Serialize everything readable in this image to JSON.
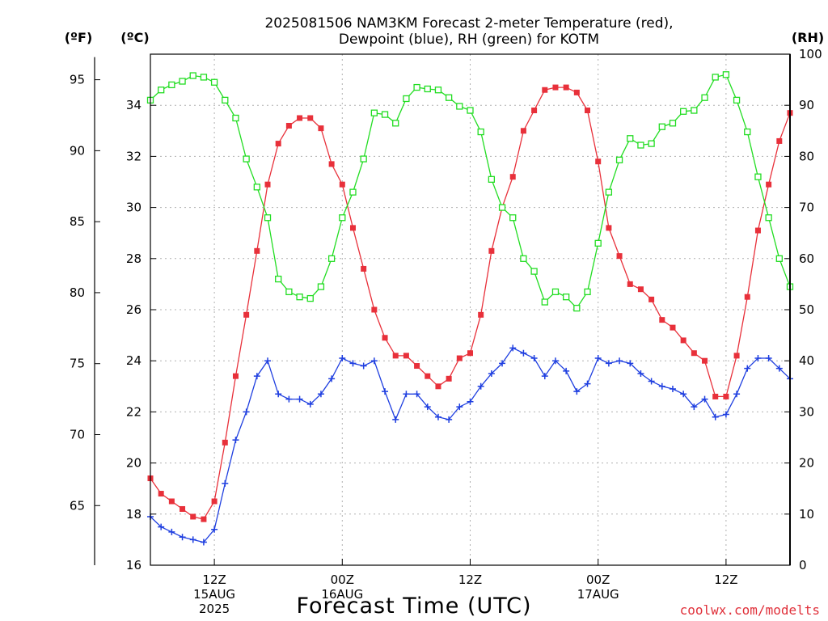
{
  "chart_data": {
    "type": "line",
    "title_line1": "2025081506 NAM3KM Forecast 2-meter Temperature (red),",
    "title_line2": "Dewpoint (blue), RH (green) for KOTM",
    "xlabel": "Forecast Time (UTC)",
    "unit_f": "(ºF)",
    "unit_c": "(ºC)",
    "unit_rh": "(RH)",
    "watermark": "coolwx.com/modelts",
    "x_ticks": [
      {
        "hour": 6,
        "line1": "12Z",
        "line2": "15AUG",
        "line3": "2025"
      },
      {
        "hour": 18,
        "line1": "00Z",
        "line2": "16AUG",
        "line3": ""
      },
      {
        "hour": 30,
        "line1": "12Z",
        "line2": "",
        "line3": ""
      },
      {
        "hour": 42,
        "line1": "00Z",
        "line2": "17AUG",
        "line3": ""
      },
      {
        "hour": 54,
        "line1": "12Z",
        "line2": "",
        "line3": ""
      }
    ],
    "x_range": [
      0,
      60
    ],
    "c_range": [
      16,
      36
    ],
    "c_ticks": [
      16,
      18,
      20,
      22,
      24,
      26,
      28,
      30,
      32,
      34
    ],
    "f_ticks": [
      65,
      70,
      75,
      80,
      85,
      90,
      95
    ],
    "rh_range": [
      0,
      100
    ],
    "rh_ticks": [
      0,
      10,
      20,
      30,
      40,
      50,
      60,
      70,
      80,
      90,
      100
    ],
    "grid": true,
    "hours": [
      0,
      1,
      2,
      3,
      4,
      5,
      6,
      7,
      8,
      9,
      10,
      11,
      12,
      13,
      14,
      15,
      16,
      17,
      18,
      19,
      20,
      21,
      22,
      23,
      24,
      25,
      26,
      27,
      28,
      29,
      30,
      31,
      32,
      33,
      34,
      35,
      36,
      37,
      38,
      39,
      40,
      41,
      42,
      43,
      44,
      45,
      46,
      47,
      48,
      49,
      50,
      51,
      52,
      53,
      54,
      55,
      56,
      57,
      58,
      59,
      60
    ],
    "series": [
      {
        "name": "Temperature",
        "unit": "C",
        "color": "#e8303a",
        "marker": "filled-square",
        "values": [
          19.4,
          18.8,
          18.5,
          18.2,
          17.9,
          17.8,
          18.5,
          20.8,
          23.4,
          25.8,
          28.3,
          30.9,
          32.5,
          33.2,
          33.5,
          33.5,
          33.1,
          31.7,
          30.9,
          29.2,
          27.6,
          26.0,
          24.9,
          24.2,
          24.2,
          23.8,
          23.4,
          23.0,
          23.3,
          24.1,
          24.3,
          25.8,
          28.3,
          30.0,
          31.2,
          33.0,
          33.8,
          34.6,
          34.7,
          34.7,
          34.5,
          33.8,
          31.8,
          29.2,
          28.1,
          27.0,
          26.8,
          26.4,
          25.6,
          25.3,
          24.8,
          24.3,
          24.0,
          22.6,
          22.6,
          24.2,
          26.5,
          29.1,
          30.9,
          32.6,
          33.7
        ]
      },
      {
        "name": "Dewpoint",
        "unit": "C",
        "color": "#1f3fe0",
        "marker": "plus",
        "values": [
          17.9,
          17.5,
          17.3,
          17.1,
          17.0,
          16.9,
          17.4,
          19.2,
          20.9,
          22.0,
          23.4,
          24.0,
          22.7,
          22.5,
          22.5,
          22.3,
          22.7,
          23.3,
          24.1,
          23.9,
          23.8,
          24.0,
          22.8,
          21.7,
          22.7,
          22.7,
          22.2,
          21.8,
          21.7,
          22.2,
          22.4,
          23.0,
          23.5,
          23.9,
          24.5,
          24.3,
          24.1,
          23.4,
          24.0,
          23.6,
          22.8,
          23.1,
          24.1,
          23.9,
          24.0,
          23.9,
          23.5,
          23.2,
          23.0,
          22.9,
          22.7,
          22.2,
          22.5,
          21.8,
          21.9,
          22.7,
          23.7,
          24.1,
          24.1,
          23.7,
          23.3
        ]
      },
      {
        "name": "RH",
        "unit": "%",
        "color": "#22dd22",
        "marker": "open-square",
        "values": [
          91,
          93,
          94,
          94.7,
          95.8,
          95.5,
          94.5,
          91,
          87.5,
          79.5,
          74,
          68,
          56,
          53.5,
          52.5,
          52.2,
          54.5,
          60,
          68,
          73,
          79.5,
          88.5,
          88.2,
          86.5,
          91.3,
          93.5,
          93.2,
          93,
          91.5,
          89.8,
          89,
          84.8,
          75.5,
          70,
          68,
          60,
          57.5,
          51.5,
          53.5,
          52.5,
          50.3,
          53.5,
          63,
          73,
          79.3,
          83.5,
          82.2,
          82.5,
          85.8,
          86.5,
          88.8,
          89,
          91.5,
          95.5,
          96,
          91,
          84.8,
          76,
          68,
          60,
          54.5
        ]
      }
    ]
  }
}
